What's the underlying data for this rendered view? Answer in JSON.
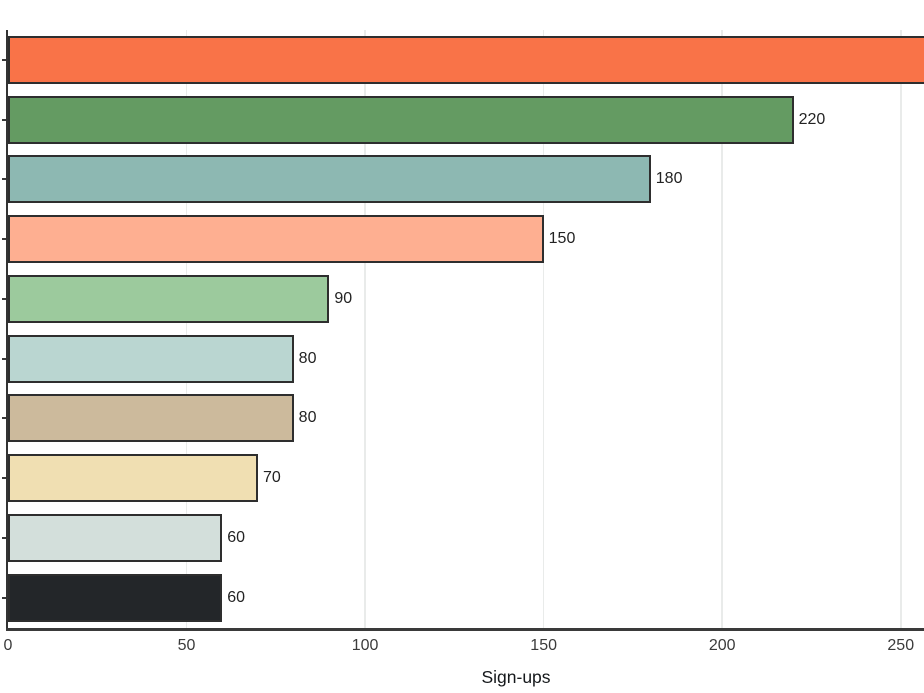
{
  "chart_data": {
    "type": "bar",
    "orientation": "horizontal",
    "title": "",
    "xlabel": "Sign-ups",
    "ylabel": "",
    "x_ticks": [
      0,
      50,
      100,
      150,
      200,
      250
    ],
    "xlim_visible": [
      0,
      257
    ],
    "grid": "vertical-light",
    "legend": "none",
    "bars": [
      {
        "value": 260,
        "label": "",
        "color": "#f97348",
        "clipped_at_right_edge": true
      },
      {
        "value": 220,
        "label": "220",
        "color": "#649b62"
      },
      {
        "value": 180,
        "label": "180",
        "color": "#8db8b2"
      },
      {
        "value": 150,
        "label": "150",
        "color": "#feaf91"
      },
      {
        "value": 90,
        "label": "90",
        "color": "#9cca9d"
      },
      {
        "value": 80,
        "label": "80",
        "color": "#bad6d1"
      },
      {
        "value": 80,
        "label": "80",
        "color": "#ccba9c"
      },
      {
        "value": 70,
        "label": "70",
        "color": "#f0dfb2"
      },
      {
        "value": 60,
        "label": "60",
        "color": "#d3dfdb"
      },
      {
        "value": 60,
        "label": "60",
        "color": "#232629"
      }
    ],
    "colors": {
      "bar_border": "#2e2e2e",
      "axis": "#3a3a3a",
      "gridline": "#e9ebea",
      "tick_text": "#3b3b3b",
      "value_text": "#232323",
      "xlabel_text": "#15181b",
      "background": "#ffffff"
    }
  }
}
